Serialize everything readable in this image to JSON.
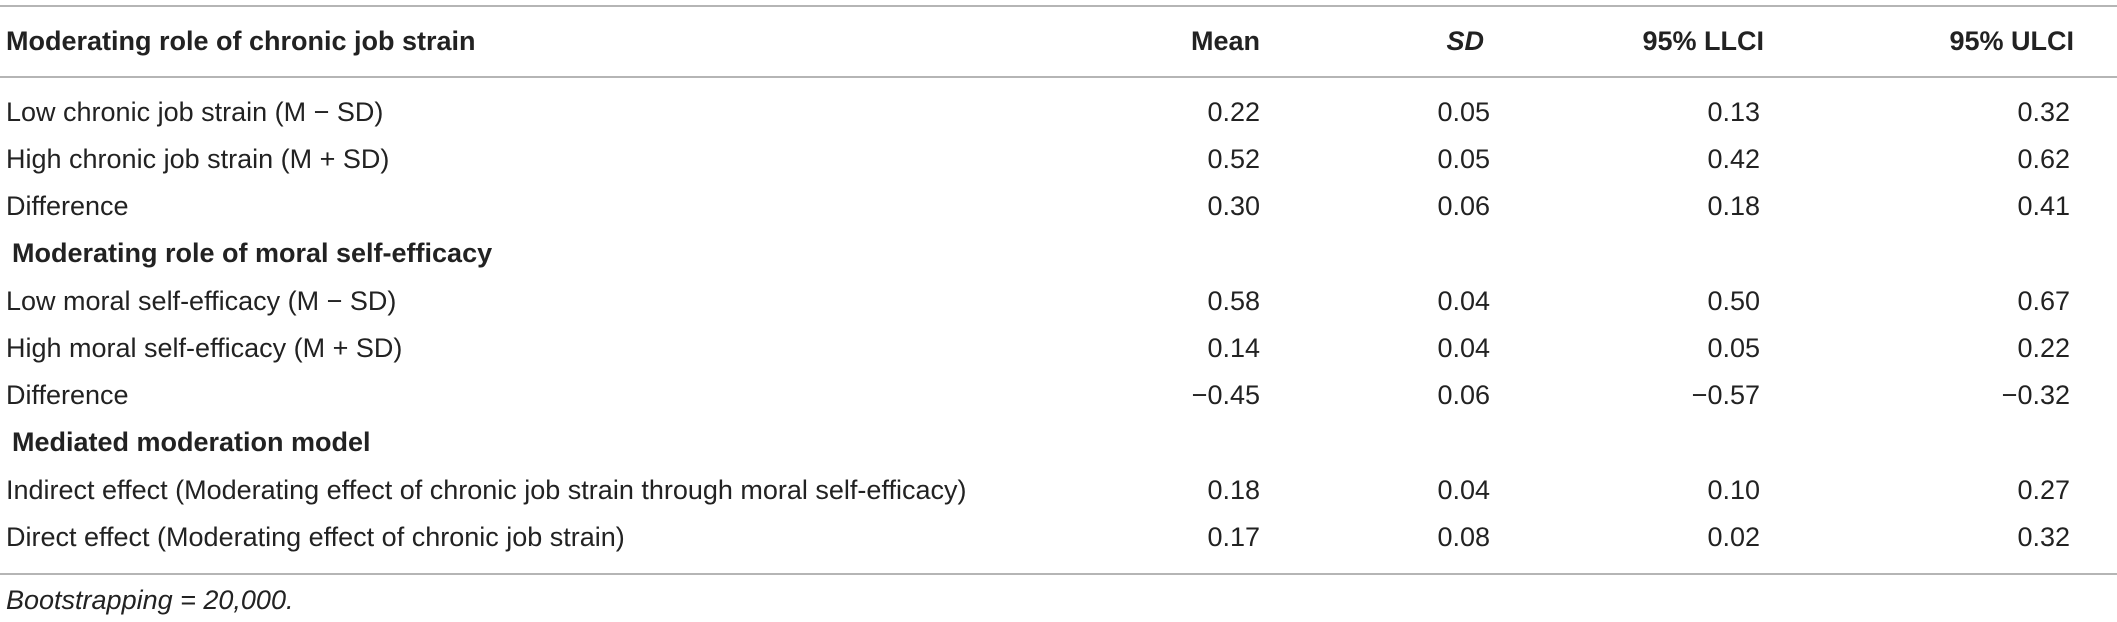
{
  "table": {
    "header": {
      "label": "Moderating role of chronic job strain",
      "mean": "Mean",
      "sd": "SD",
      "llci": "95% LLCI",
      "ulci": "95% ULCI"
    },
    "rows": [
      {
        "label": "Low chronic job strain (M − SD)",
        "mean": "0.22",
        "sd": "0.05",
        "llci": "0.13",
        "ulci": "0.32"
      },
      {
        "label": "High chronic job strain (M + SD)",
        "mean": "0.52",
        "sd": "0.05",
        "llci": "0.42",
        "ulci": "0.62"
      },
      {
        "label": "Difference",
        "mean": "0.30",
        "sd": "0.06",
        "llci": "0.18",
        "ulci": "0.41"
      },
      {
        "label": "Moderating role of moral self-efficacy"
      },
      {
        "label": "Low moral self-efficacy (M − SD)",
        "mean": "0.58",
        "sd": "0.04",
        "llci": "0.50",
        "ulci": "0.67"
      },
      {
        "label": "High moral self-efficacy (M + SD)",
        "mean": "0.14",
        "sd": "0.04",
        "llci": "0.05",
        "ulci": "0.22"
      },
      {
        "label": "Difference",
        "mean": "−0.45",
        "sd": "0.06",
        "llci": "−0.57",
        "ulci": "−0.32"
      },
      {
        "label": "Mediated moderation model"
      },
      {
        "label": "Indirect effect (Moderating effect of chronic job strain through moral self-efficacy)",
        "mean": "0.18",
        "sd": "0.04",
        "llci": "0.10",
        "ulci": "0.27"
      },
      {
        "label": "Direct effect (Moderating effect of chronic job strain)",
        "mean": "0.17",
        "sd": "0.08",
        "llci": "0.02",
        "ulci": "0.32"
      }
    ],
    "footnote": "Bootstrapping = 20,000."
  },
  "colors": {
    "text": "#222222",
    "rule": "#b5b5b5",
    "background": "#ffffff"
  }
}
